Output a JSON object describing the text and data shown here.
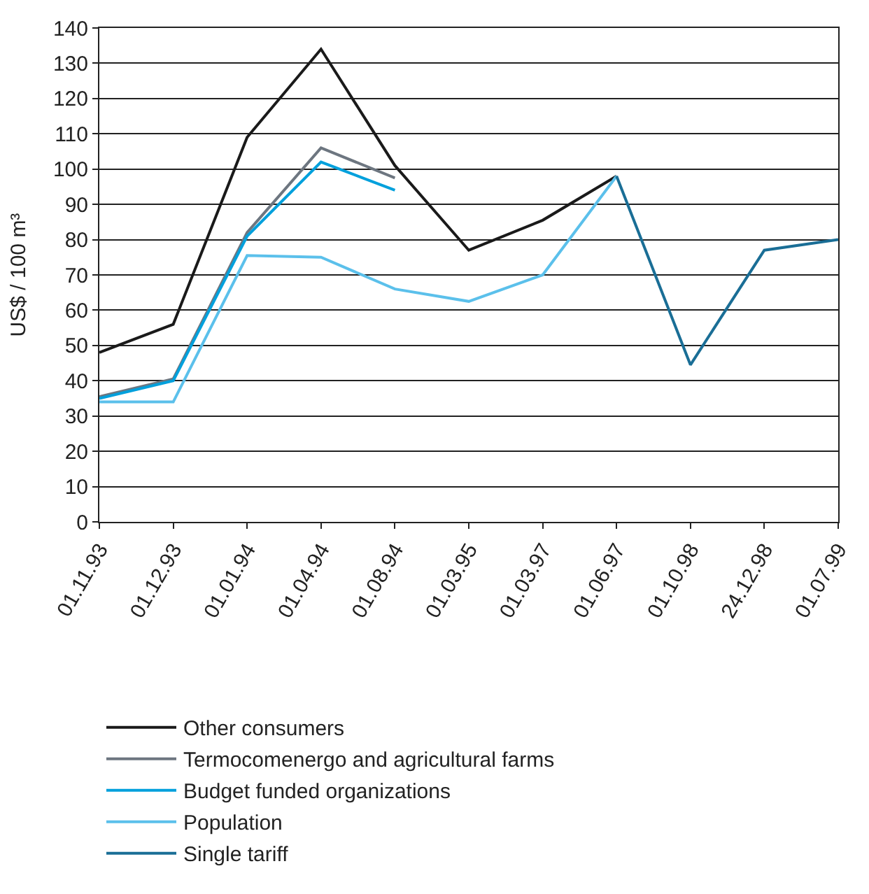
{
  "chart_data": {
    "type": "line",
    "ylabel": "US$ / 100 m³",
    "categories": [
      "01.11.93",
      "01.12.93",
      "01.01.94",
      "01.04.94",
      "01.08.94",
      "01.03.95",
      "01.03.97",
      "01.06.97",
      "01.10.98",
      "24.12.98",
      "01.07.99"
    ],
    "series": [
      {
        "name": "Other consumers",
        "color": "#1a1a1a",
        "values": [
          48,
          56,
          109,
          134,
          101,
          77,
          85.5,
          98,
          null,
          null,
          null
        ]
      },
      {
        "name": "Termocomenergo and agricultural farms",
        "color": "#6d7680",
        "values": [
          35.5,
          40.5,
          82,
          106,
          97.5,
          null,
          null,
          null,
          null,
          null,
          null
        ]
      },
      {
        "name": "Budget funded organizations",
        "color": "#00a0dc",
        "values": [
          35,
          40,
          81,
          102,
          94,
          null,
          null,
          null,
          null,
          null,
          null
        ]
      },
      {
        "name": "Population",
        "color": "#5bc0eb",
        "values": [
          34,
          34,
          75.5,
          75,
          66,
          62.5,
          70,
          98,
          null,
          null,
          null
        ]
      },
      {
        "name": "Single tariff",
        "color": "#1a6e96",
        "values": [
          null,
          null,
          null,
          null,
          null,
          null,
          null,
          98,
          44.5,
          77,
          80
        ]
      }
    ],
    "ylim": [
      0,
      140
    ],
    "yticks": [
      0,
      10,
      20,
      30,
      40,
      50,
      60,
      70,
      80,
      90,
      100,
      110,
      120,
      130,
      140
    ],
    "grid": "y",
    "legend": "bottom",
    "marker": "none",
    "line_style": "solid"
  }
}
